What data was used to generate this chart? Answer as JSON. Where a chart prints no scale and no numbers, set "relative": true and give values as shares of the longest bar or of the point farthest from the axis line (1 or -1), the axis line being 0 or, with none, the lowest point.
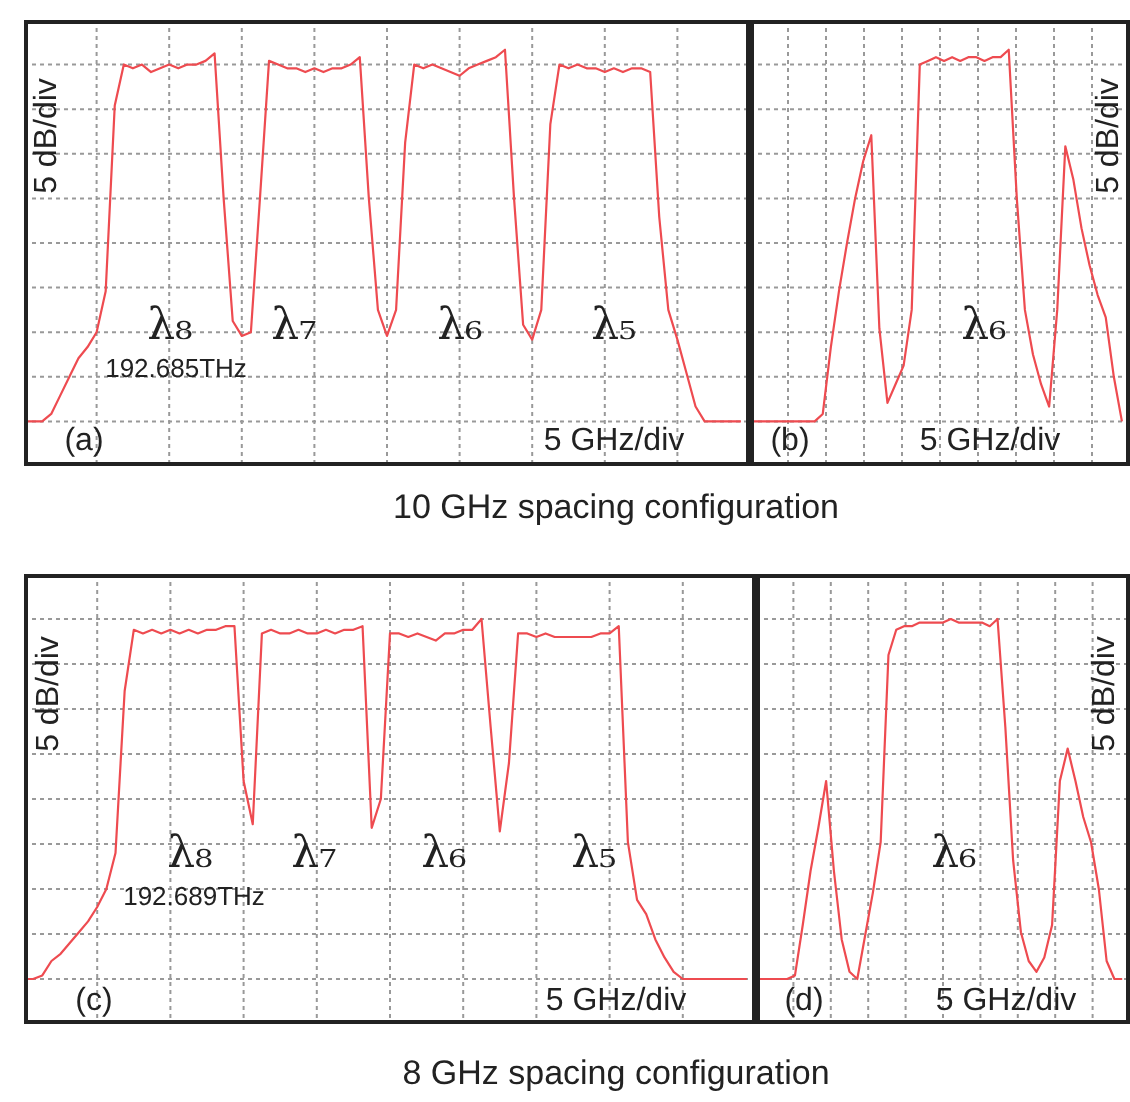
{
  "chart_data": [
    {
      "type": "line",
      "ylabel": "5 dB/div",
      "relative": true,
      "grid": true,
      "tick_labels": false,
      "categories": [
        null,
        null,
        null,
        null,
        null,
        null,
        null,
        null,
        null,
        null,
        null,
        null,
        null,
        null,
        null,
        null,
        null,
        null,
        null,
        null,
        null,
        null,
        null,
        null,
        null,
        null,
        null,
        null,
        null,
        null,
        null,
        null,
        null,
        null,
        null,
        null,
        null,
        null,
        null,
        null,
        null,
        null,
        null,
        null,
        null,
        null,
        null,
        null,
        null,
        null,
        null,
        null,
        null,
        null,
        null,
        null,
        null,
        null,
        null,
        null,
        null,
        null,
        null,
        null,
        null,
        null,
        null,
        null,
        null,
        null,
        null,
        null,
        null,
        null,
        null,
        null,
        null,
        null,
        null,
        null
      ],
      "series": [
        {
          "color": "#ee4b50",
          "values": [
            0,
            0,
            0,
            0.02,
            0.07,
            0.12,
            0.17,
            0.2,
            0.24,
            0.35,
            0.85,
            0.96,
            0.95,
            0.96,
            0.94,
            0.95,
            0.96,
            0.95,
            0.96,
            0.96,
            0.97,
            0.99,
            0.6,
            0.27,
            0.23,
            0.24,
            0.6,
            0.97,
            0.96,
            0.95,
            0.95,
            0.94,
            0.95,
            0.94,
            0.95,
            0.95,
            0.96,
            0.98,
            0.6,
            0.3,
            0.23,
            0.3,
            0.75,
            0.96,
            0.95,
            0.96,
            0.95,
            0.94,
            0.93,
            0.95,
            0.96,
            0.97,
            0.98,
            1,
            0.6,
            0.26,
            0.22,
            0.3,
            0.8,
            0.96,
            0.95,
            0.96,
            0.95,
            0.95,
            0.94,
            0.95,
            0.94,
            0.95,
            0.95,
            0.94,
            0.55,
            0.3,
            0.22,
            0.13,
            0.04,
            0,
            0,
            0,
            0,
            0
          ]
        }
      ],
      "annotations": [
        "λ₈",
        "λ₇",
        "λ₆",
        "λ₅",
        "192.685THz",
        "(a)",
        "5 GHz/div",
        "10 GHz spacing configuration"
      ]
    },
    {
      "type": "line",
      "ylabel": "5 dB/div",
      "relative": true,
      "grid": true,
      "tick_labels": false,
      "categories": [
        null,
        null,
        null,
        null,
        null,
        null,
        null,
        null,
        null,
        null,
        null,
        null,
        null,
        null,
        null,
        null,
        null,
        null,
        null,
        null,
        null,
        null,
        null,
        null,
        null,
        null,
        null,
        null,
        null,
        null,
        null,
        null,
        null,
        null,
        null,
        null,
        null,
        null,
        null,
        null,
        null,
        null,
        null,
        null,
        null,
        null,
        null
      ],
      "series": [
        {
          "color": "#ee4b50",
          "values": [
            0,
            0,
            0,
            0,
            0,
            0,
            0,
            0,
            0,
            0.02,
            0.2,
            0.35,
            0.48,
            0.6,
            0.7,
            0.77,
            0.25,
            0.05,
            0.1,
            0.15,
            0.3,
            0.96,
            0.97,
            0.98,
            0.97,
            0.98,
            0.97,
            0.98,
            0.98,
            0.97,
            0.98,
            0.98,
            1,
            0.6,
            0.3,
            0.18,
            0.1,
            0.04,
            0.3,
            0.74,
            0.65,
            0.52,
            0.42,
            0.34,
            0.28,
            0.12,
            0
          ]
        }
      ],
      "annotations": [
        "λ₆",
        "(b)",
        "5 GHz/div"
      ]
    },
    {
      "type": "line",
      "ylabel": "5 dB/div",
      "relative": true,
      "grid": true,
      "tick_labels": false,
      "categories": [
        null,
        null,
        null,
        null,
        null,
        null,
        null,
        null,
        null,
        null,
        null,
        null,
        null,
        null,
        null,
        null,
        null,
        null,
        null,
        null,
        null,
        null,
        null,
        null,
        null,
        null,
        null,
        null,
        null,
        null,
        null,
        null,
        null,
        null,
        null,
        null,
        null,
        null,
        null,
        null,
        null,
        null,
        null,
        null,
        null,
        null,
        null,
        null,
        null,
        null,
        null,
        null,
        null,
        null,
        null,
        null,
        null,
        null,
        null,
        null,
        null,
        null,
        null,
        null,
        null,
        null,
        null,
        null,
        null,
        null,
        null,
        null,
        null,
        null,
        null,
        null,
        null,
        null,
        null,
        null
      ],
      "series": [
        {
          "color": "#ee4b50",
          "values": [
            0,
            0,
            0.01,
            0.05,
            0.07,
            0.1,
            0.13,
            0.16,
            0.2,
            0.25,
            0.35,
            0.8,
            0.97,
            0.96,
            0.97,
            0.96,
            0.97,
            0.96,
            0.97,
            0.96,
            0.97,
            0.97,
            0.98,
            0.98,
            0.55,
            0.43,
            0.96,
            0.97,
            0.96,
            0.96,
            0.97,
            0.96,
            0.96,
            0.97,
            0.96,
            0.97,
            0.97,
            0.98,
            0.42,
            0.5,
            0.96,
            0.96,
            0.95,
            0.96,
            0.95,
            0.94,
            0.96,
            0.96,
            0.97,
            0.97,
            1,
            0.7,
            0.41,
            0.6,
            0.96,
            0.96,
            0.95,
            0.96,
            0.95,
            0.95,
            0.95,
            0.95,
            0.95,
            0.96,
            0.96,
            0.98,
            0.38,
            0.22,
            0.18,
            0.11,
            0.06,
            0.02,
            0,
            0,
            0,
            0,
            0,
            0,
            0,
            0
          ]
        }
      ],
      "annotations": [
        "λ₈",
        "λ₇",
        "λ₆",
        "λ₅",
        "192.689THz",
        "(c)",
        "5 GHz/div",
        "8 GHz  spacing configuration"
      ]
    },
    {
      "type": "line",
      "ylabel": "5 dB/div",
      "relative": true,
      "grid": true,
      "tick_labels": false,
      "categories": [
        null,
        null,
        null,
        null,
        null,
        null,
        null,
        null,
        null,
        null,
        null,
        null,
        null,
        null,
        null,
        null,
        null,
        null,
        null,
        null,
        null,
        null,
        null,
        null,
        null,
        null,
        null,
        null,
        null,
        null,
        null,
        null,
        null,
        null,
        null,
        null,
        null,
        null,
        null,
        null,
        null,
        null,
        null,
        null,
        null,
        null,
        null,
        null
      ],
      "series": [
        {
          "color": "#ee4b50",
          "values": [
            0,
            0,
            0,
            0,
            0,
            0.01,
            0.15,
            0.3,
            0.42,
            0.55,
            0.3,
            0.11,
            0.02,
            0,
            0.12,
            0.24,
            0.38,
            0.9,
            0.97,
            0.98,
            0.98,
            0.99,
            0.99,
            0.99,
            0.99,
            1,
            0.99,
            0.99,
            0.99,
            0.99,
            0.98,
            1,
            0.7,
            0.33,
            0.13,
            0.05,
            0.02,
            0.06,
            0.15,
            0.55,
            0.64,
            0.55,
            0.45,
            0.38,
            0.25,
            0.05,
            0,
            0
          ]
        }
      ],
      "annotations": [
        "λ₆",
        "(d)",
        "5 GHz/div"
      ]
    }
  ]
}
